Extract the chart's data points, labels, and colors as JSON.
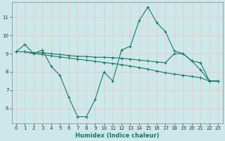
{
  "xlabel": "Humidex (Indice chaleur)",
  "bg_color": "#cce8e8",
  "line_color": "#1a7a6a",
  "grid_color": "#e8f8f8",
  "xlim": [
    -0.5,
    23.5
  ],
  "ylim": [
    5.2,
    11.8
  ],
  "yticks": [
    6,
    7,
    8,
    9,
    10,
    11
  ],
  "xticks": [
    0,
    1,
    2,
    3,
    4,
    5,
    6,
    7,
    8,
    9,
    10,
    11,
    12,
    13,
    14,
    15,
    16,
    17,
    18,
    19,
    20,
    21,
    22,
    23
  ],
  "series1_x": [
    0,
    1,
    2,
    3,
    4,
    5,
    6,
    7,
    8,
    9,
    10,
    11,
    12,
    13,
    14,
    15,
    16,
    17,
    18,
    19,
    20,
    21,
    22,
    23
  ],
  "series1_y": [
    9.1,
    9.5,
    9.0,
    9.2,
    8.3,
    7.8,
    6.6,
    5.55,
    5.55,
    6.5,
    8.0,
    7.5,
    9.2,
    9.4,
    10.8,
    11.55,
    10.7,
    10.2,
    9.15,
    9.0,
    8.6,
    8.1,
    7.5,
    7.5
  ],
  "series2_x": [
    0,
    1,
    2,
    3,
    4,
    5,
    6,
    7,
    8,
    9,
    10,
    11,
    12,
    13,
    14,
    15,
    16,
    17,
    18,
    19,
    20,
    21,
    22,
    23
  ],
  "series2_y": [
    9.1,
    9.1,
    9.05,
    9.05,
    9.0,
    8.95,
    8.9,
    8.85,
    8.85,
    8.8,
    8.8,
    8.78,
    8.75,
    8.7,
    8.65,
    8.6,
    8.55,
    8.5,
    9.0,
    9.0,
    8.6,
    8.5,
    7.5,
    7.5
  ],
  "series3_x": [
    0,
    1,
    2,
    3,
    4,
    5,
    6,
    7,
    8,
    9,
    10,
    11,
    12,
    13,
    14,
    15,
    16,
    17,
    18,
    19,
    20,
    21,
    22,
    23
  ],
  "series3_y": [
    9.1,
    9.1,
    9.0,
    8.95,
    8.88,
    8.82,
    8.76,
    8.7,
    8.64,
    8.58,
    8.52,
    8.46,
    8.4,
    8.32,
    8.24,
    8.15,
    8.05,
    7.95,
    7.88,
    7.82,
    7.75,
    7.68,
    7.5,
    7.5
  ]
}
